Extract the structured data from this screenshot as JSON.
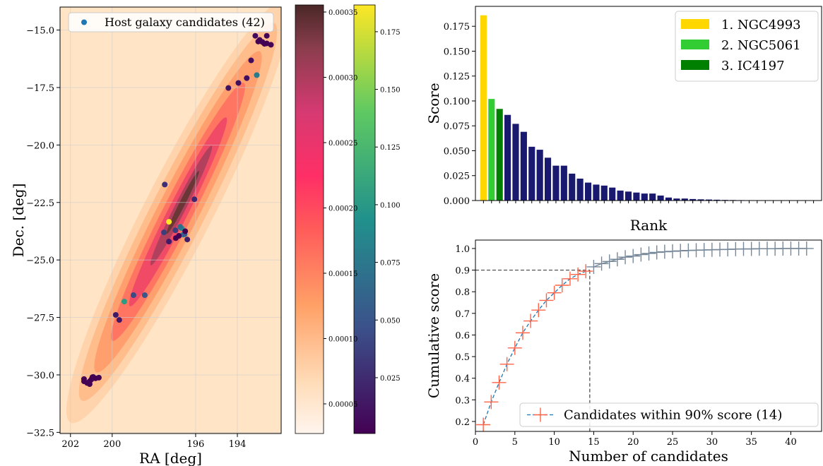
{
  "chart_data": [
    {
      "type": "scatter",
      "xlabel": "RA [deg]",
      "ylabel": "Dec. [deg]",
      "xlim": [
        202.5,
        191.9
      ],
      "ylim": [
        -32.55,
        -14.0
      ],
      "xticks": [
        202,
        200,
        196,
        194
      ],
      "yticks": [
        {
          "value": -15.0,
          "label": "−15.0"
        },
        {
          "value": -17.5,
          "label": "−17.5"
        },
        {
          "value": -20.0,
          "label": "−20.0"
        },
        {
          "value": -22.5,
          "label": "−22.5"
        },
        {
          "value": -25.0,
          "label": "−25.0"
        },
        {
          "value": -27.5,
          "label": "−27.5"
        },
        {
          "value": -30.0,
          "label": "−30.0"
        },
        {
          "value": -32.5,
          "label": "−32.5"
        }
      ],
      "grid": true,
      "legend_loc": "upper left",
      "series": [
        {
          "name": "Host galaxy candidates (42)",
          "color": "#1f77b4",
          "x": [
            197.28,
            199.42,
            196.67,
            196.6,
            193.07,
            196.74,
            196.53,
            198.44,
            198.98,
            197.52,
            196.97,
            197.48,
            196.06,
            196.4,
            197.28,
            199.83,
            199.66,
            194.43,
            193.95,
            193.55,
            193.34,
            193.14,
            192.93,
            192.8,
            192.59,
            192.59,
            192.39,
            201.35,
            201.35,
            201.08,
            201.08,
            200.91,
            200.64,
            201.0,
            200.8,
            196.8,
            196.95,
            193.0,
            201.2,
            192.7,
            196.5,
            200.95
          ],
          "values": [
            -23.34,
            -26.81,
            -23.62,
            -23.9,
            -16.96,
            -23.56,
            -23.88,
            -26.53,
            -26.53,
            -23.8,
            -23.71,
            -21.72,
            -22.36,
            -24.11,
            -24.2,
            -27.39,
            -27.61,
            -17.52,
            -17.3,
            -17.09,
            -16.32,
            -15.25,
            -15.43,
            -15.52,
            -15.58,
            -15.25,
            -15.64,
            -30.18,
            -30.28,
            -30.4,
            -30.28,
            -30.09,
            -30.12,
            -30.2,
            -30.15,
            -23.95,
            -24.05,
            -15.5,
            -30.35,
            -15.6,
            -23.75,
            -30.1
          ],
          "scores": [
            0.186,
            0.102,
            0.092,
            0.086,
            0.077,
            0.069,
            0.054,
            0.051,
            0.043,
            0.035,
            0.035,
            0.027,
            0.022,
            0.018,
            0.016,
            0.015,
            0.013,
            0.01,
            0.009,
            0.008,
            0.007,
            0.007,
            0.005,
            0.003,
            0.002,
            0.002,
            0.0015,
            0.0012,
            0.001,
            0.0008,
            0.0006,
            0.0005,
            0.0004,
            0.0003,
            0.0002,
            0.0001,
            0.0001,
            5e-05,
            0,
            0,
            0,
            0
          ]
        }
      ],
      "colorbars": [
        {
          "cmap": "probability",
          "clim": [
            2.73e-05,
            0.0003554
          ],
          "ticks": [
            {
              "value": 5e-05,
              "label": "0.00005"
            },
            {
              "value": 0.0001,
              "label": "0.00010"
            },
            {
              "value": 0.00015,
              "label": "0.00015"
            },
            {
              "value": 0.0002,
              "label": "0.00020"
            },
            {
              "value": 0.00025,
              "label": "0.00025"
            },
            {
              "value": 0.0003,
              "label": "0.00030"
            },
            {
              "value": 0.00035,
              "label": "0.00035"
            }
          ]
        },
        {
          "cmap": "viridis",
          "clim": [
            0.0008,
            0.1866
          ],
          "ticks": [
            0.025,
            {
              "value": 0.05,
              "label": "0.050"
            },
            0.075,
            {
              "value": 0.1,
              "label": "0.100"
            },
            0.125,
            {
              "value": 0.15,
              "label": "0.150"
            },
            0.175
          ]
        }
      ]
    },
    {
      "type": "bar",
      "xlabel": "Rank",
      "ylabel": "Score",
      "xlim": [
        0,
        43
      ],
      "ylim": [
        0,
        0.195
      ],
      "yticks": [
        {
          "value": 0,
          "label": "0.000"
        },
        0.025,
        {
          "value": 0.05,
          "label": "0.050"
        },
        0.075,
        {
          "value": 0.1,
          "label": "0.100"
        },
        0.125,
        {
          "value": 0.15,
          "label": "0.150"
        },
        0.175
      ],
      "x": [
        1,
        2,
        3,
        4,
        5,
        6,
        7,
        8,
        9,
        10,
        11,
        12,
        13,
        14,
        15,
        16,
        17,
        18,
        19,
        20,
        21,
        22,
        23,
        24,
        25,
        26,
        27,
        28,
        29,
        30,
        31,
        32,
        33,
        34,
        35,
        36,
        37,
        38,
        39,
        40,
        41,
        42
      ],
      "values": [
        0.186,
        0.102,
        0.092,
        0.086,
        0.077,
        0.069,
        0.054,
        0.051,
        0.043,
        0.035,
        0.035,
        0.027,
        0.022,
        0.018,
        0.016,
        0.015,
        0.013,
        0.01,
        0.009,
        0.008,
        0.007,
        0.007,
        0.005,
        0.003,
        0.002,
        0.002,
        0.0015,
        0.0012,
        0.001,
        0.0008,
        0.0006,
        0.0005,
        0.0004,
        0.0003,
        0.0002,
        0.0001,
        0.0001,
        5e-05,
        0,
        0,
        0,
        0
      ],
      "color": "#191970",
      "highlights": [
        {
          "name": "1. NGC4993",
          "color": "#ffd700"
        },
        {
          "name": "2. NGC5061",
          "color": "#32cd32"
        },
        {
          "name": "3. IC4197",
          "color": "#008000"
        }
      ],
      "legend_loc": "upper right"
    },
    {
      "type": "line",
      "xlabel": "Number of candidates",
      "ylabel": "Cumulative score",
      "xlim": [
        0,
        43.9
      ],
      "ylim": [
        0.154,
        1.039
      ],
      "xticks": [
        0,
        5,
        10,
        15,
        20,
        25,
        30,
        35,
        40
      ],
      "yticks": [
        0.2,
        0.3,
        0.4,
        0.5,
        0.6,
        0.7,
        0.8,
        0.9,
        {
          "value": 1.0,
          "label": "1.0"
        }
      ],
      "hline": 0.9,
      "vline": 14.5,
      "legend_loc": "lower right",
      "series": [
        {
          "name": "Candidates within 90% score (14)",
          "color": "#ff6347",
          "line_color": "#1f77b4",
          "linestyle": "dashed",
          "x": [
            1,
            2,
            3,
            4,
            5,
            6,
            7,
            8,
            9,
            10,
            11,
            12,
            13,
            14
          ],
          "values": [
            0.185,
            0.29,
            0.38,
            0.465,
            0.54,
            0.61,
            0.665,
            0.715,
            0.76,
            0.795,
            0.83,
            0.86,
            0.88,
            0.895
          ]
        },
        {
          "color": "#778899",
          "line_color": "#778899",
          "linestyle": "solid",
          "x": [
            15,
            16,
            17,
            18,
            19,
            20,
            21,
            22,
            23,
            24,
            25,
            26,
            27,
            28,
            29,
            30,
            31,
            32,
            33,
            34,
            35,
            36,
            37,
            38,
            39,
            40,
            41,
            42
          ],
          "values": [
            0.915,
            0.93,
            0.94,
            0.95,
            0.96,
            0.965,
            0.972,
            0.977,
            0.982,
            0.985,
            0.987,
            0.989,
            0.991,
            0.992,
            0.993,
            0.994,
            0.995,
            0.996,
            0.997,
            0.998,
            0.998,
            0.999,
            0.999,
            0.999,
            1.0,
            1.0,
            1.0,
            1.0
          ]
        }
      ]
    }
  ]
}
